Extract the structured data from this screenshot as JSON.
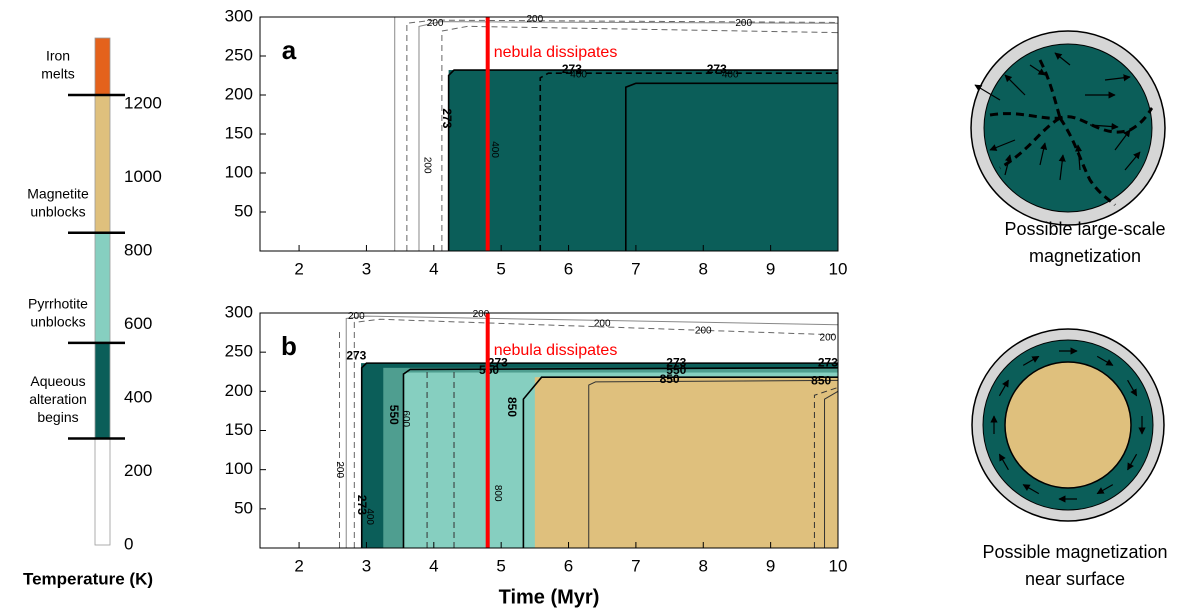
{
  "chart_data": [
    {
      "type": "colorbar",
      "label": "Temperature (K)",
      "ylim": [
        0,
        1380
      ],
      "yticks": [
        0,
        200,
        400,
        600,
        800,
        1000,
        1200
      ],
      "bands": [
        {
          "from": 0,
          "to": 290,
          "color": "#ffffff"
        },
        {
          "from": 290,
          "to": 550,
          "color": "#0b5e59"
        },
        {
          "from": 550,
          "to": 850,
          "color": "#86cfc0"
        },
        {
          "from": 850,
          "to": 1225,
          "color": "#dfc07d"
        },
        {
          "from": 1225,
          "to": 1380,
          "color": "#e4621c"
        }
      ],
      "boundaries": [
        {
          "value": 290,
          "label": [
            "Aqueous",
            "alteration",
            "begins"
          ]
        },
        {
          "value": 550,
          "label": [
            "Pyrrhotite",
            "unblocks"
          ]
        },
        {
          "value": 850,
          "label": [
            "Magnetite",
            "unblocks"
          ]
        },
        {
          "value": 1225,
          "label": [
            "Iron",
            "melts"
          ]
        }
      ]
    },
    {
      "type": "contour",
      "panel": "a",
      "xlim": [
        1.42,
        10
      ],
      "ylim": [
        0,
        300
      ],
      "xticks": [
        2,
        3,
        4,
        5,
        6,
        7,
        8,
        9,
        10
      ],
      "yticks": [
        50,
        100,
        150,
        200,
        250,
        300
      ],
      "regions": [
        {
          "x": [
            4.22,
            10
          ],
          "y": [
            0,
            232
          ],
          "color": "#0b5e59"
        }
      ],
      "lines": [
        {
          "x": [
            3.42,
            3.42
          ],
          "y": [
            0,
            300
          ],
          "color": "#888888",
          "dashed": false
        },
        {
          "x": [
            3.6,
            3.6,
            4.0,
            10
          ],
          "y": [
            0,
            292,
            296,
            293
          ],
          "color": "#666666",
          "dashed": true
        },
        {
          "x": [
            3.78,
            3.78,
            4.1,
            10
          ],
          "y": [
            0,
            288,
            294,
            292
          ],
          "color": "#888888",
          "dashed": false
        },
        {
          "x": [
            4.12,
            4.12,
            4.5,
            10
          ],
          "y": [
            0,
            282,
            288,
            280
          ],
          "color": "#666666",
          "dashed": true
        },
        {
          "x": [
            4.22,
            4.22,
            4.3,
            10
          ],
          "y": [
            0,
            225,
            232,
            232
          ],
          "color": "#000000",
          "dashed": false
        },
        {
          "x": [
            5.58,
            5.58,
            5.7,
            10
          ],
          "y": [
            0,
            222,
            228,
            228
          ],
          "color": "#000000",
          "dashed": true
        },
        {
          "x": [
            6.85,
            6.85,
            7.0,
            10
          ],
          "y": [
            0,
            210,
            215,
            215
          ],
          "color": "#000000",
          "dashed": false
        }
      ],
      "labels": [
        {
          "text": "200",
          "x": 4.02,
          "y": 292,
          "vertical": false,
          "bold": false
        },
        {
          "text": "200",
          "x": 5.5,
          "y": 297,
          "vertical": false,
          "bold": false
        },
        {
          "text": "200",
          "x": 8.6,
          "y": 292,
          "vertical": false,
          "bold": false
        },
        {
          "text": "273",
          "x": 4.18,
          "y": 170,
          "vertical": true,
          "bold": true
        },
        {
          "text": "273",
          "x": 6.05,
          "y": 232,
          "vertical": false,
          "bold": true
        },
        {
          "text": "273",
          "x": 8.2,
          "y": 232,
          "vertical": false,
          "bold": true
        },
        {
          "text": "400",
          "x": 6.15,
          "y": 226,
          "vertical": false,
          "bold": false
        },
        {
          "text": "400",
          "x": 8.4,
          "y": 226,
          "vertical": false,
          "bold": false
        },
        {
          "text": "200",
          "x": 3.9,
          "y": 110,
          "vertical": true,
          "bold": false
        },
        {
          "text": "400",
          "x": 4.9,
          "y": 130,
          "vertical": true,
          "bold": false
        }
      ],
      "marker": {
        "x": 4.8,
        "label": "nebula dissipates",
        "label_y": 254,
        "color": "#ff0000"
      }
    },
    {
      "type": "contour",
      "panel": "b",
      "xlabel": "Time (Myr)",
      "xlim": [
        1.42,
        10
      ],
      "ylim": [
        0,
        300
      ],
      "xticks": [
        2,
        3,
        4,
        5,
        6,
        7,
        8,
        9,
        10
      ],
      "yticks": [
        50,
        100,
        150,
        200,
        250,
        300
      ],
      "regions": [
        {
          "x": [
            2.92,
            10
          ],
          "y": [
            0,
            236
          ],
          "color": "#0b5e59"
        },
        {
          "x": [
            3.25,
            10
          ],
          "y": [
            0,
            230
          ],
          "color": "#4f9e90"
        },
        {
          "x": [
            3.55,
            10
          ],
          "y": [
            0,
            224
          ],
          "color": "#86cfc0"
        },
        {
          "x": [
            5.5,
            10
          ],
          "y": [
            0,
            218
          ],
          "color": "#dfc07d"
        }
      ],
      "lines": [
        {
          "x": [
            2.6,
            2.6
          ],
          "y": [
            0,
            280
          ],
          "color": "#666666",
          "dashed": true
        },
        {
          "x": [
            2.7,
            2.7,
            3.0,
            10
          ],
          "y": [
            0,
            293,
            296,
            285
          ],
          "color": "#888888",
          "dashed": false
        },
        {
          "x": [
            2.82,
            2.82,
            3.2,
            10
          ],
          "y": [
            0,
            288,
            292,
            272
          ],
          "color": "#666666",
          "dashed": true
        },
        {
          "x": [
            2.93,
            2.93,
            3.0,
            10
          ],
          "y": [
            0,
            230,
            236,
            236
          ],
          "color": "#000000",
          "dashed": false
        },
        {
          "x": [
            3.55,
            3.55,
            3.65,
            10
          ],
          "y": [
            0,
            222,
            228,
            230
          ],
          "color": "#000000",
          "dashed": false
        },
        {
          "x": [
            3.9,
            3.9
          ],
          "y": [
            0,
            226
          ],
          "color": "#333333",
          "dashed": true
        },
        {
          "x": [
            4.3,
            4.3
          ],
          "y": [
            0,
            225
          ],
          "color": "#333333",
          "dashed": true
        },
        {
          "x": [
            5.33,
            5.33,
            5.6,
            10
          ],
          "y": [
            0,
            190,
            218,
            218
          ],
          "color": "#000000",
          "dashed": false
        },
        {
          "x": [
            6.3,
            6.3,
            6.4,
            10
          ],
          "y": [
            0,
            208,
            212,
            214
          ],
          "color": "#333333",
          "dashed": false
        },
        {
          "x": [
            9.65,
            9.65,
            10
          ],
          "y": [
            0,
            195,
            205
          ],
          "color": "#333333",
          "dashed": true
        },
        {
          "x": [
            9.8,
            9.8,
            10
          ],
          "y": [
            0,
            190,
            200
          ],
          "color": "#333333",
          "dashed": false
        }
      ],
      "labels": [
        {
          "text": "200",
          "x": 2.85,
          "y": 296,
          "vertical": false,
          "bold": false
        },
        {
          "text": "200",
          "x": 4.7,
          "y": 298,
          "vertical": false,
          "bold": false
        },
        {
          "text": "200",
          "x": 6.5,
          "y": 286,
          "vertical": false,
          "bold": false
        },
        {
          "text": "200",
          "x": 8.0,
          "y": 277,
          "vertical": false,
          "bold": false
        },
        {
          "text": "200",
          "x": 9.85,
          "y": 268,
          "vertical": false,
          "bold": false
        },
        {
          "text": "273",
          "x": 2.85,
          "y": 245,
          "vertical": false,
          "bold": true
        },
        {
          "text": "273",
          "x": 2.92,
          "y": 55,
          "vertical": true,
          "bold": true
        },
        {
          "text": "550",
          "x": 3.4,
          "y": 170,
          "vertical": true,
          "bold": true
        },
        {
          "text": "600",
          "x": 3.58,
          "y": 165,
          "vertical": true,
          "bold": false
        },
        {
          "text": "400",
          "x": 3.05,
          "y": 40,
          "vertical": true,
          "bold": false
        },
        {
          "text": "200",
          "x": 2.6,
          "y": 100,
          "vertical": true,
          "bold": false
        },
        {
          "text": "850",
          "x": 5.15,
          "y": 180,
          "vertical": true,
          "bold": true
        },
        {
          "text": "800",
          "x": 4.95,
          "y": 70,
          "vertical": true,
          "bold": false
        },
        {
          "text": "273",
          "x": 4.95,
          "y": 236,
          "vertical": false,
          "bold": true
        },
        {
          "text": "550",
          "x": 4.82,
          "y": 226,
          "vertical": false,
          "bold": true
        },
        {
          "text": "273",
          "x": 7.6,
          "y": 236,
          "vertical": false,
          "bold": true
        },
        {
          "text": "550",
          "x": 7.6,
          "y": 226,
          "vertical": false,
          "bold": true
        },
        {
          "text": "850",
          "x": 7.5,
          "y": 215,
          "vertical": false,
          "bold": true
        },
        {
          "text": "273",
          "x": 9.85,
          "y": 236,
          "vertical": false,
          "bold": true
        },
        {
          "text": "850",
          "x": 9.75,
          "y": 213,
          "vertical": false,
          "bold": true
        }
      ],
      "marker": {
        "x": 4.8,
        "label": "nebula dissipates",
        "label_y": 252,
        "color": "#ff0000"
      }
    }
  ],
  "illustrations": [
    {
      "caption": [
        "Possible large-scale",
        "magnetization"
      ]
    },
    {
      "caption": [
        "Possible magnetization",
        "near surface"
      ]
    }
  ]
}
